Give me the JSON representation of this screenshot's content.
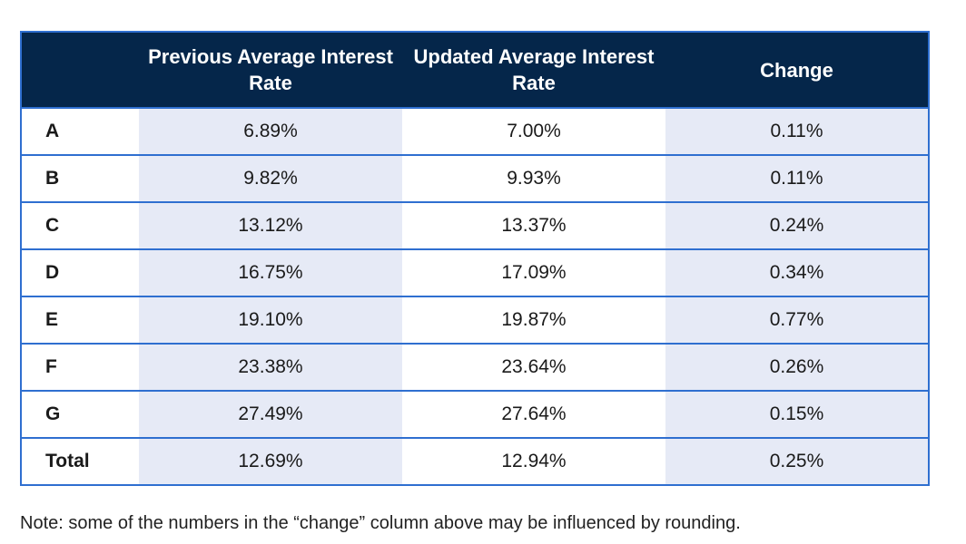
{
  "table": {
    "headers": [
      "",
      "Previous Average Interest Rate",
      "Updated Average Interest Rate",
      "Change"
    ],
    "rows": [
      {
        "label": "A",
        "previous": "6.89%",
        "updated": "7.00%",
        "change": "0.11%"
      },
      {
        "label": "B",
        "previous": "9.82%",
        "updated": "9.93%",
        "change": "0.11%"
      },
      {
        "label": "C",
        "previous": "13.12%",
        "updated": "13.37%",
        "change": "0.24%"
      },
      {
        "label": "D",
        "previous": "16.75%",
        "updated": "17.09%",
        "change": "0.34%"
      },
      {
        "label": "E",
        "previous": "19.10%",
        "updated": "19.87%",
        "change": "0.77%"
      },
      {
        "label": "F",
        "previous": "23.38%",
        "updated": "23.64%",
        "change": "0.26%"
      },
      {
        "label": "G",
        "previous": "27.49%",
        "updated": "27.64%",
        "change": "0.15%"
      },
      {
        "label": "Total",
        "previous": "12.69%",
        "updated": "12.94%",
        "change": "0.25%"
      }
    ]
  },
  "note": "Note: some of the numbers in the “change” column above may be influenced by rounding.",
  "colors": {
    "header_bg": "#05264a",
    "border": "#2f6fd0",
    "tint": "#e6eaf6"
  }
}
